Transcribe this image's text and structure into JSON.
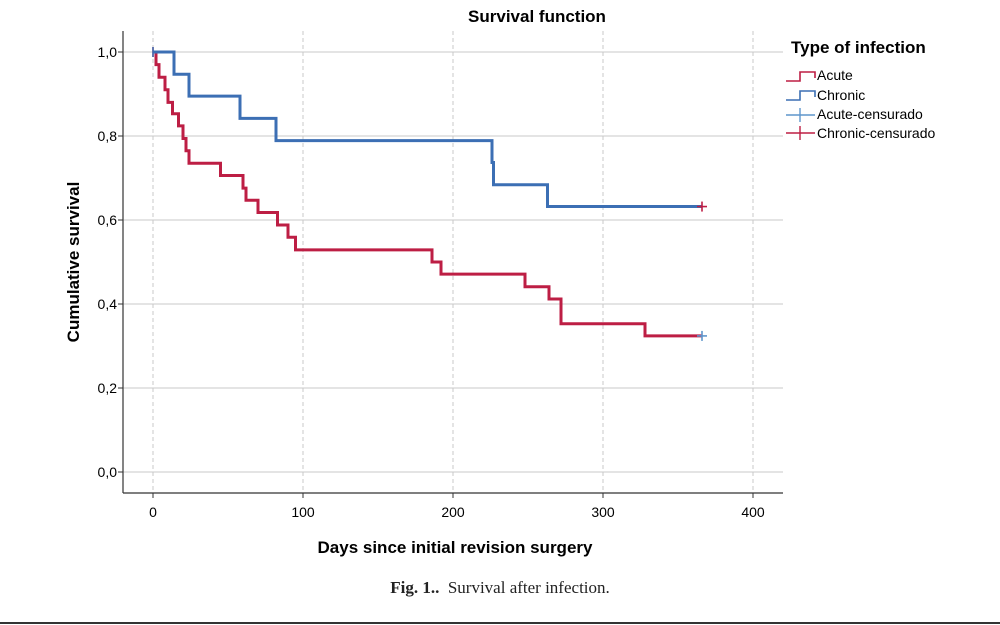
{
  "chart_data": {
    "type": "line",
    "subtype": "step (Kaplan-Meier)",
    "title": "Survival function",
    "xlabel": "Days since initial revision surgery",
    "ylabel": "Cumulative survival",
    "xlim": [
      -20,
      420
    ],
    "ylim": [
      -0.05,
      1.05
    ],
    "x_ticks": [
      0,
      100,
      200,
      300,
      400
    ],
    "x_tick_labels": [
      "0",
      "100",
      "200",
      "300",
      "400"
    ],
    "y_ticks": [
      0.0,
      0.2,
      0.4,
      0.6,
      0.8,
      1.0
    ],
    "y_tick_labels": [
      "0,0",
      "0,2",
      "0,4",
      "0,6",
      "0,8",
      "1,0"
    ],
    "grid": "dashed vertical and solid horizontal",
    "legend_placement": "right",
    "legend_title": "Type of infection",
    "legend": [
      "Acute",
      "Chronic",
      "Acute-censurado",
      "Chronic-censurado"
    ],
    "series": [
      {
        "name": "Acute",
        "color": "#bd1e44",
        "steps": [
          [
            0,
            1.0
          ],
          [
            2,
            0.97
          ],
          [
            4,
            0.94
          ],
          [
            8,
            0.91
          ],
          [
            10,
            0.88
          ],
          [
            13,
            0.853
          ],
          [
            17,
            0.824
          ],
          [
            20,
            0.794
          ],
          [
            22,
            0.765
          ],
          [
            24,
            0.735
          ],
          [
            45,
            0.706
          ],
          [
            60,
            0.676
          ],
          [
            62,
            0.647
          ],
          [
            70,
            0.618
          ],
          [
            83,
            0.588
          ],
          [
            90,
            0.559
          ],
          [
            95,
            0.529
          ],
          [
            186,
            0.5
          ],
          [
            192,
            0.471
          ],
          [
            248,
            0.441
          ],
          [
            264,
            0.412
          ],
          [
            272,
            0.353
          ],
          [
            328,
            0.324
          ],
          [
            366,
            0.324
          ]
        ],
        "censored": [
          [
            366,
            0.324
          ]
        ]
      },
      {
        "name": "Chronic",
        "color": "#3c6fb4",
        "steps": [
          [
            0,
            1.0
          ],
          [
            14,
            0.947
          ],
          [
            24,
            0.895
          ],
          [
            58,
            0.842
          ],
          [
            82,
            0.789
          ],
          [
            226,
            0.737
          ],
          [
            227,
            0.684
          ],
          [
            263,
            0.632
          ],
          [
            366,
            0.632
          ]
        ],
        "censored": [
          [
            366,
            0.632
          ]
        ]
      }
    ],
    "censor_marker_colors": {
      "Acute-censurado": "#5f96cc",
      "Chronic-censurado": "#bd1e44"
    }
  },
  "caption": {
    "label": "Fig. 1..",
    "text": "Survival after infection."
  }
}
